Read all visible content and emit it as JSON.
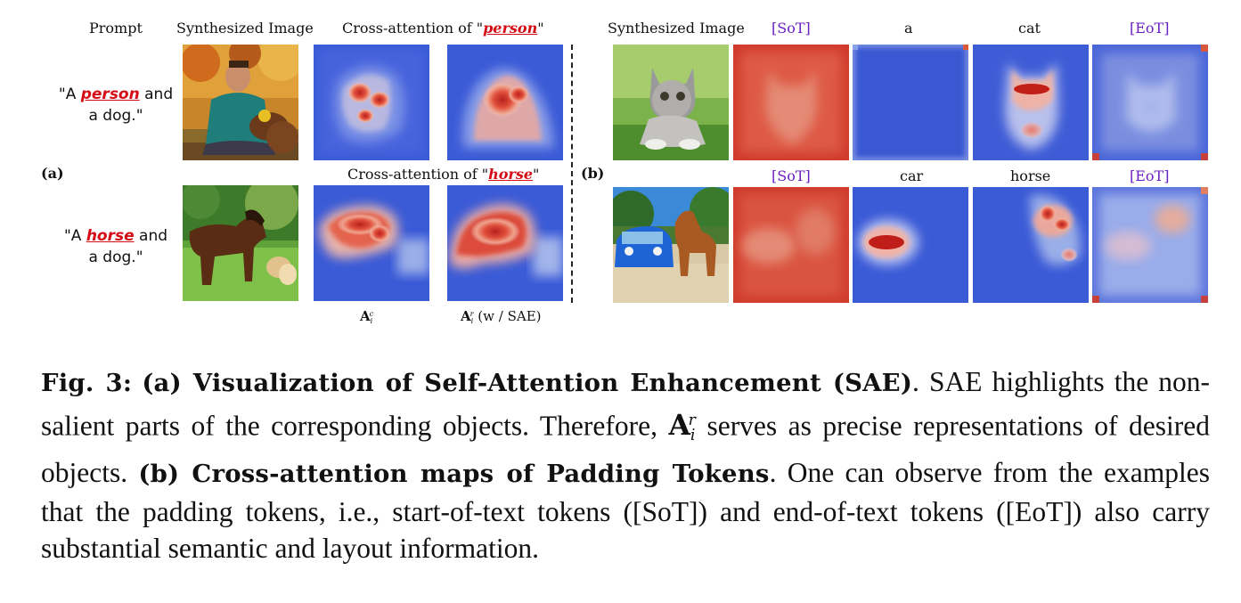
{
  "panel_a": {
    "tag": "(a)",
    "headers": {
      "prompt": "Prompt",
      "synth": "Synthesized Image",
      "cross_attn_prefix": "Cross-attention of \"",
      "cross_attn_suffix": "\""
    },
    "rows": [
      {
        "prompt_pre": "\"A ",
        "token": "person",
        "prompt_post": " and",
        "prompt_line2": "a dog.\"",
        "attn_token": "person"
      },
      {
        "prompt_pre": "\"A ",
        "token": "horse",
        "prompt_post": " and",
        "prompt_line2": "a dog.\"",
        "attn_token": "horse"
      }
    ],
    "col_labels": {
      "ac_base": "A",
      "ac_sub": "i",
      "ac_sup": "c",
      "ar_base": "A",
      "ar_sub": "i",
      "ar_sup": "r",
      "ar_suffix": " (w / SAE)"
    }
  },
  "panel_b": {
    "tag": "(b)",
    "synth_header": "Synthesized Image",
    "rows": [
      {
        "tokens": [
          "[SoT]",
          "a",
          "cat",
          "[EoT]"
        ]
      },
      {
        "tokens": [
          "[SoT]",
          "car",
          "horse",
          "[EoT]"
        ]
      }
    ]
  },
  "caption": {
    "fig": "Fig. 3:",
    "part_a_title": "(a) Visualization of Self-Attention Enhancement (SAE)",
    "part_a_text_1": ". SAE highlights the non-salient parts of the corresponding objects. Therefore, ",
    "math_base": "A",
    "math_sub": "i",
    "math_sup": "r",
    "part_a_text_2": " serves as precise representations of desired objects. ",
    "part_b_title": "(b) Cross-attention maps of Padding Tokens",
    "part_b_text": ". One can observe from the examples that the padding tokens, i.e., start-of-text tokens ([SoT]) and end-of-text tokens ([EoT]) also carry substantial semantic and layout information."
  },
  "colors": {
    "token_red": "#d40b14",
    "padding_purple": "#6a1fc2",
    "heat_low": "#3a5ad6",
    "heat_high": "#c8281e"
  }
}
